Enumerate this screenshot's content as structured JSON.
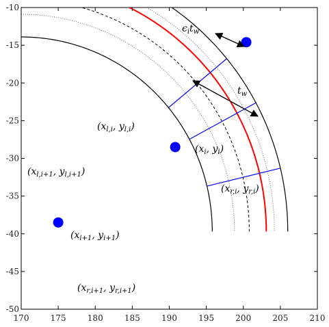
{
  "chart_data": {
    "type": "line",
    "xlim": [
      170,
      210
    ],
    "ylim": [
      -50,
      -10
    ],
    "x_ticks": [
      "170",
      "175",
      "180",
      "185",
      "190",
      "195",
      "200",
      "205",
      "210"
    ],
    "y_ticks": [
      "-10",
      "-15",
      "-20",
      "-25",
      "-30",
      "-35",
      "-40",
      "-45",
      "-50"
    ],
    "grid": false,
    "center": [
      170,
      -39.7
    ],
    "outer_radius_outer_wall": 36.0,
    "offsets": {
      "left_wall": 2.9,
      "left_dotted": 1.1,
      "reference_line": 0.0,
      "dashed_line": -2.3,
      "right_dotted": -4.3,
      "right_wall": -7.3
    },
    "points": [
      {
        "name": "i-1",
        "x": 200.4,
        "y": -14.6
      },
      {
        "name": "i",
        "x": 190.8,
        "y": -28.5
      },
      {
        "name": "i+1",
        "x": 175.0,
        "y": -38.5
      }
    ],
    "colors": {
      "wall": "#000000",
      "reference": "#ff0000",
      "marker": "#0000ff",
      "normal": "#0000ff",
      "guide": "#444444"
    }
  },
  "labels": {
    "eps_tw": {
      "main": "ϵ",
      "sub": "i",
      "tail": "t",
      "sub2": "w"
    },
    "tw": {
      "main": "t",
      "sub": "w"
    },
    "left_i": "(x",
    "left_i_sub": "l,i",
    "left_i_mid": ", y",
    "left_i_sub2": "l,i",
    "left_i_end": ")",
    "left_ip1": "(x",
    "left_ip1_sub": "l,i+1",
    "left_ip1_mid": ", y",
    "left_ip1_sub2": "l,i+1",
    "left_ip1_end": ")",
    "center_i": "(x",
    "center_i_sub": "i",
    "center_i_mid": ", y",
    "center_i_sub2": "i",
    "center_i_end": ")",
    "right_i": "(x",
    "right_i_sub": "r,i",
    "right_i_mid": ", y",
    "right_i_sub2": "r,i",
    "right_i_end": ")",
    "center_ip1": "(x",
    "center_ip1_sub": "i+1",
    "center_ip1_mid": ", y",
    "center_ip1_sub2": "i+1",
    "center_ip1_end": ")",
    "right_ip1": "(x",
    "right_ip1_sub": "r,i+1",
    "right_ip1_mid": ", y",
    "right_ip1_sub2": "r,i+1",
    "right_ip1_end": ")"
  }
}
